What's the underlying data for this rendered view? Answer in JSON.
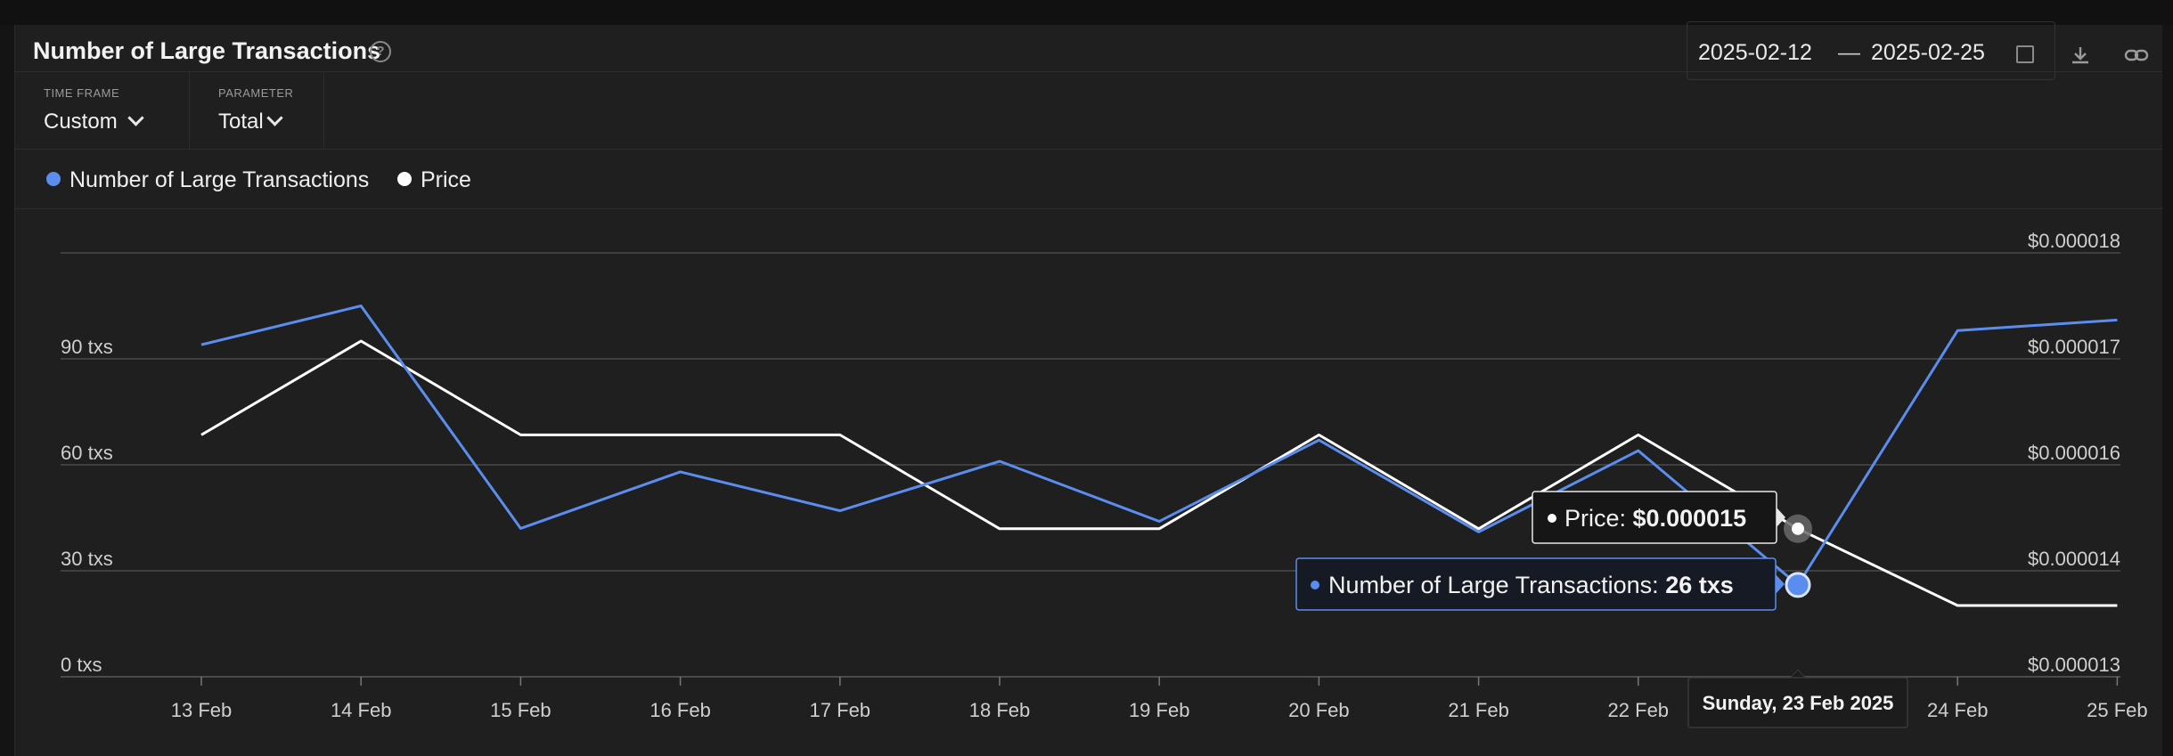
{
  "header": {
    "title": "Number of Large Transactions",
    "date_from": "2025-02-12",
    "date_sep": "—",
    "date_to": "2025-02-25"
  },
  "controls": [
    {
      "label": "TIME FRAME",
      "value": "Custom"
    },
    {
      "label": "PARAMETER",
      "value": "Total"
    }
  ],
  "colors": {
    "tx": "#5b8def",
    "price": "#ffffff",
    "grid": "#4a4a4a",
    "bg": "#1f1f1f"
  },
  "icons": {
    "help": "question-circle-icon",
    "calendar": "calendar-icon",
    "download": "download-icon",
    "link": "link-icon"
  },
  "chart_data": {
    "type": "line",
    "categories": [
      "13 Feb",
      "14 Feb",
      "15 Feb",
      "16 Feb",
      "17 Feb",
      "18 Feb",
      "19 Feb",
      "20 Feb",
      "21 Feb",
      "22 Feb",
      "23 Feb",
      "24 Feb",
      "25 Feb"
    ],
    "series": [
      {
        "name": "Number of Large Transactions",
        "axis": "left",
        "color": "#5b8def",
        "values": [
          94,
          105,
          42,
          58,
          47,
          61,
          44,
          67,
          41,
          64,
          26,
          98,
          101
        ]
      },
      {
        "name": "Price",
        "axis": "right",
        "color": "#ffffff",
        "values": [
          1.61e-05,
          1.72e-05,
          1.61e-05,
          1.61e-05,
          1.61e-05,
          1.5e-05,
          1.5e-05,
          1.61e-05,
          1.5e-05,
          1.61e-05,
          1.5e-05,
          1.41e-05,
          1.41e-05
        ]
      }
    ],
    "y_left": {
      "ticks": [
        0,
        30,
        60,
        90
      ],
      "tick_labels": [
        "0 txs",
        "30 txs",
        "60 txs",
        "90 txs"
      ],
      "lim": [
        0,
        120
      ]
    },
    "y_right": {
      "tick_labels": [
        "$0.000013",
        "$0.000014",
        "$0.000016",
        "$0.000017",
        "$0.000018"
      ]
    },
    "grid": true,
    "legend": "top-left",
    "tooltip": {
      "category_index": 10,
      "date": "Sunday, 23 Feb 2025",
      "price_label": "Price: ",
      "price_value": "$0.000015",
      "tx_label": "Number of Large Transactions: ",
      "tx_value": "26 txs"
    }
  }
}
